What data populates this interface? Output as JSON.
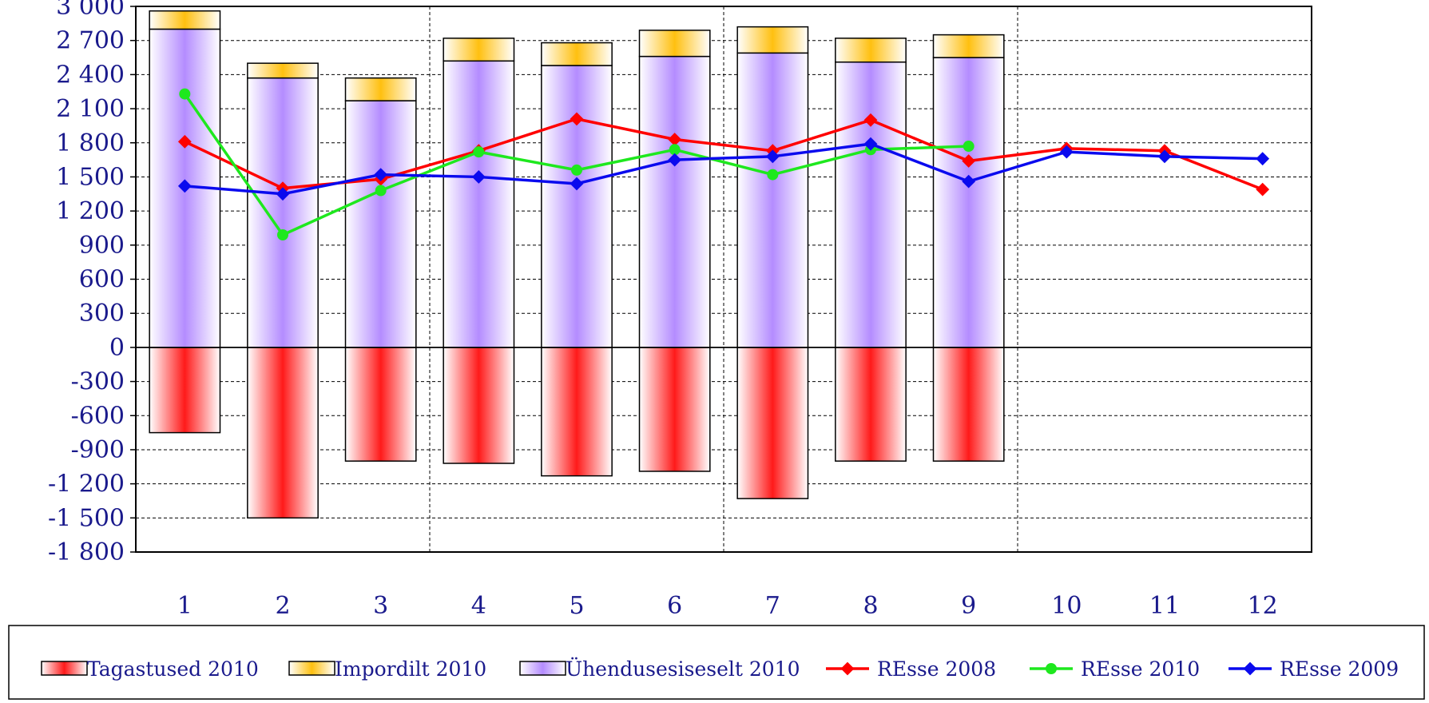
{
  "chart_data": {
    "type": "bar",
    "categories": [
      "1",
      "2",
      "3",
      "4",
      "5",
      "6",
      "7",
      "8",
      "9",
      "10",
      "11",
      "12"
    ],
    "ylim": [
      -1800,
      3000
    ],
    "yticks": [
      {
        "value": 3000,
        "label": "3 000"
      },
      {
        "value": 2700,
        "label": "2 700"
      },
      {
        "value": 2400,
        "label": "2 400"
      },
      {
        "value": 2100,
        "label": "2 100"
      },
      {
        "value": 1800,
        "label": "1 800"
      },
      {
        "value": 1500,
        "label": "1 500"
      },
      {
        "value": 1200,
        "label": "1 200"
      },
      {
        "value": 900,
        "label": "900"
      },
      {
        "value": 600,
        "label": "600"
      },
      {
        "value": 300,
        "label": "300"
      },
      {
        "value": 0,
        "label": "0"
      },
      {
        "value": -300,
        "label": "-300"
      },
      {
        "value": -600,
        "label": "-600"
      },
      {
        "value": -900,
        "label": "-900"
      },
      {
        "value": -1200,
        "label": "-1 200"
      },
      {
        "value": -1500,
        "label": "-1 500"
      },
      {
        "value": -1800,
        "label": "-1 800"
      }
    ],
    "grid": true,
    "legend_position": "bottom",
    "stacked_bars": [
      {
        "name": "Tagastused 2010",
        "color": "#ff2020",
        "values": [
          -750,
          -1500,
          -1000,
          -1020,
          -1130,
          -1090,
          -1330,
          -1000,
          -1000,
          null,
          null,
          null
        ]
      },
      {
        "name": "Ühendusesiseselt 2010",
        "color": "#b48cff",
        "values": [
          2800,
          2370,
          2170,
          2520,
          2480,
          2560,
          2590,
          2510,
          2550,
          null,
          null,
          null
        ]
      },
      {
        "name": "Impordilt 2010",
        "color": "#ffc010",
        "values": [
          160,
          130,
          200,
          200,
          200,
          230,
          230,
          210,
          200,
          null,
          null,
          null
        ]
      }
    ],
    "series": [
      {
        "name": "REsse 2008",
        "color": "#ff0000",
        "marker": "diamond",
        "values": [
          1810,
          1400,
          1480,
          1730,
          2010,
          1830,
          1730,
          2000,
          1640,
          1750,
          1730,
          1390
        ]
      },
      {
        "name": "REsse 2010",
        "color": "#1ee81e",
        "marker": "circle",
        "values": [
          2230,
          990,
          1380,
          1720,
          1560,
          1740,
          1520,
          1740,
          1770,
          null,
          null,
          null
        ]
      },
      {
        "name": "REsse 2009",
        "color": "#0a0aee",
        "marker": "diamond",
        "values": [
          1420,
          1350,
          1520,
          1500,
          1440,
          1650,
          1680,
          1790,
          1460,
          1720,
          1680,
          1660
        ]
      }
    ],
    "legend_order": [
      {
        "name": "Tagastused 2010",
        "kind": "bar",
        "color": "#ff2020"
      },
      {
        "name": "Impordilt 2010",
        "kind": "bar",
        "color": "#ffc010"
      },
      {
        "name": "Ühendusesiseselt 2010",
        "kind": "bar",
        "color": "#b48cff"
      },
      {
        "name": "REsse 2008",
        "kind": "line",
        "color": "#ff0000",
        "marker": "diamond"
      },
      {
        "name": "REsse 2010",
        "kind": "line",
        "color": "#1ee81e",
        "marker": "circle"
      },
      {
        "name": "REsse 2009",
        "kind": "line",
        "color": "#0a0aee",
        "marker": "diamond"
      }
    ],
    "vertical_dividers_after_categories": [
      "3",
      "6",
      "9"
    ]
  }
}
